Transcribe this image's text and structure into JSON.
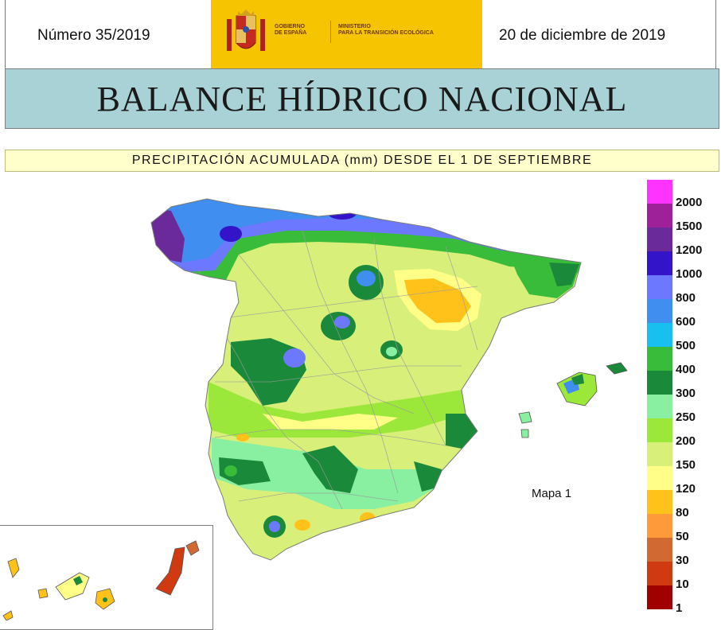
{
  "header": {
    "issue": "Número 35/2019",
    "date": "20 de diciembre de 2019",
    "gov_line1": "GOBIERNO",
    "gov_line2": "DE ESPAÑA",
    "ministry_line1": "MINISTERIO",
    "ministry_line2": "PARA LA TRANSICIÓN ECOLÓGICA"
  },
  "title": "BALANCE HÍDRICO NACIONAL",
  "subtitle": "PRECIPITACIÓN ACUMULADA (mm) DESDE EL 1 DE SEPTIEMBRE",
  "map_label": "Mapa 1",
  "legend": [
    {
      "label": "2000",
      "color": "#ff33ff"
    },
    {
      "label": "1500",
      "color": "#a0209a"
    },
    {
      "label": "1200",
      "color": "#6a2a9a"
    },
    {
      "label": "1000",
      "color": "#3414c8"
    },
    {
      "label": "800",
      "color": "#6b78ff"
    },
    {
      "label": "600",
      "color": "#3f8ef0"
    },
    {
      "label": "500",
      "color": "#18c0f0"
    },
    {
      "label": "400",
      "color": "#38bc3a"
    },
    {
      "label": "300",
      "color": "#1a8a3a"
    },
    {
      "label": "250",
      "color": "#88f0a0"
    },
    {
      "label": "200",
      "color": "#9ce83a"
    },
    {
      "label": "150",
      "color": "#d8f07a"
    },
    {
      "label": "120",
      "color": "#ffff88"
    },
    {
      "label": "80",
      "color": "#ffc21a"
    },
    {
      "label": "50",
      "color": "#ff9a3a"
    },
    {
      "label": "30",
      "color": "#d06a30"
    },
    {
      "label": "10",
      "color": "#d03a10"
    },
    {
      "label": "1",
      "color": "#a00000"
    }
  ]
}
